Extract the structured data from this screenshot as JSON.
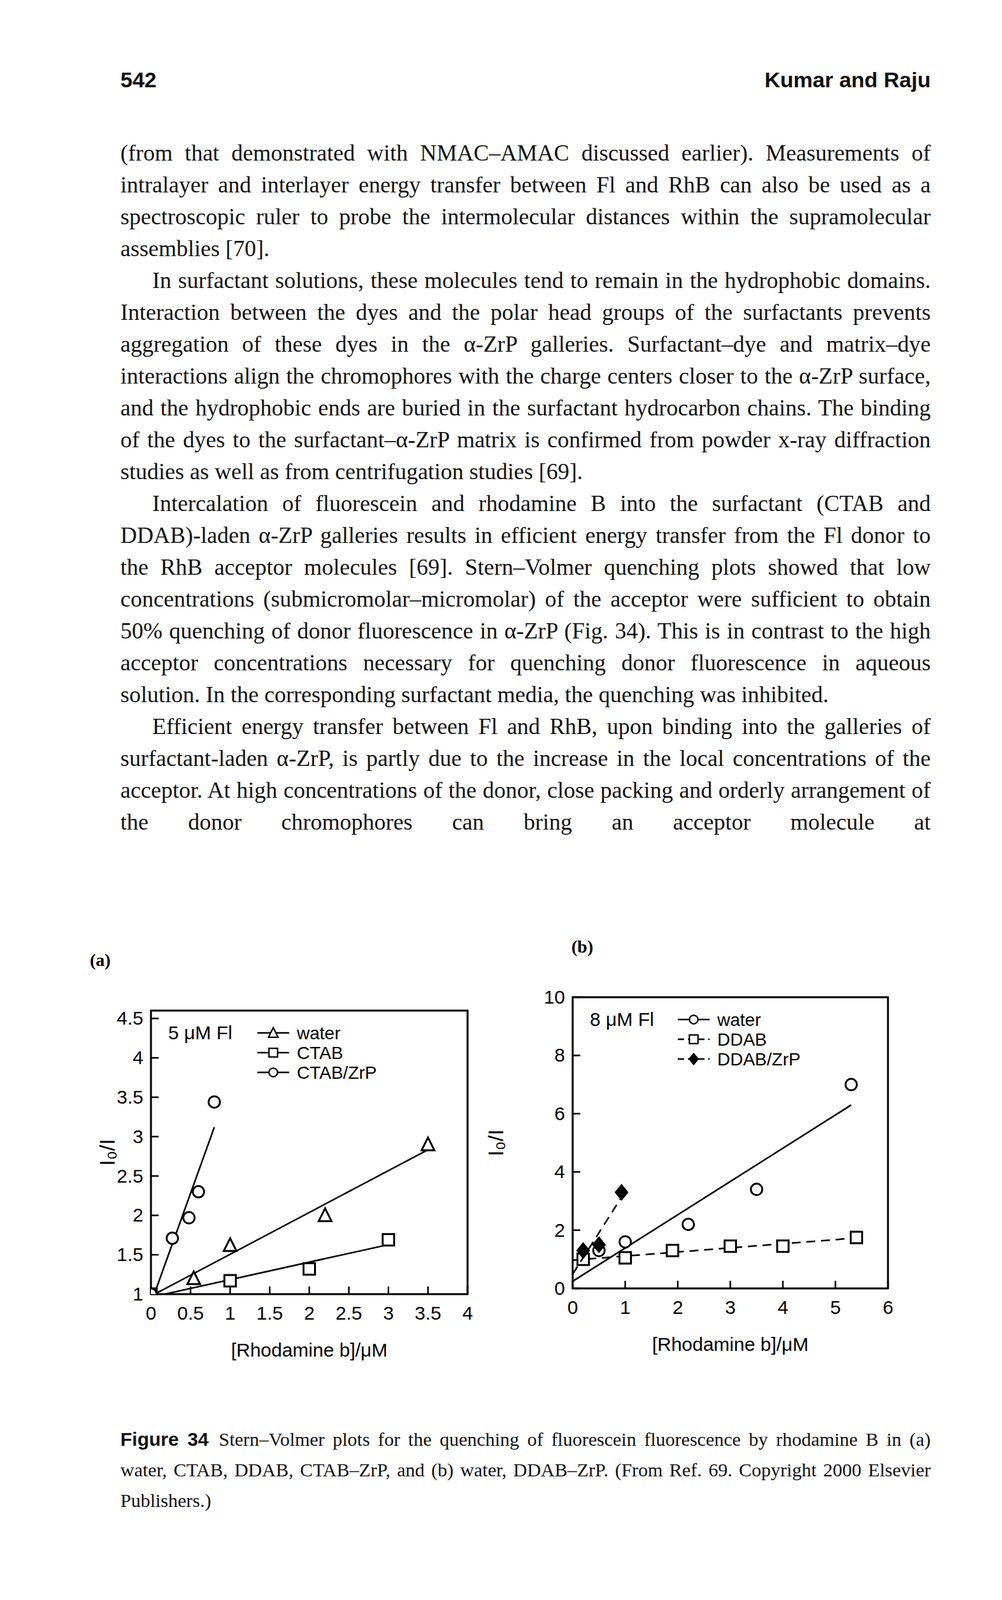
{
  "page": {
    "page_number": "542",
    "running_head": "Kumar and Raju",
    "paragraphs": [
      "(from that demonstrated with NMAC–AMAC discussed earlier). Measurements of intralayer and interlayer energy transfer between Fl and RhB can also be used as a spectroscopic ruler to probe the intermolecular distances within the supramolecular assemblies [70].",
      "In surfactant solutions, these molecules tend to remain in the hydrophobic domains. Interaction between the dyes and the polar head groups of the surfactants prevents aggregation of these dyes in the α-ZrP galleries. Surfactant–dye and matrix–dye interactions align the chromophores with the charge centers closer to the α-ZrP surface, and the hydrophobic ends are buried in the surfactant hydrocarbon chains. The binding of the dyes to the surfactant–α-ZrP matrix is confirmed from powder x-ray diffraction studies as well as from centrifugation studies [69].",
      "Intercalation of fluorescein and rhodamine B into the surfactant (CTAB and DDAB)-laden α-ZrP galleries results in efficient energy transfer from the Fl donor to the RhB acceptor molecules [69]. Stern–Volmer quenching plots showed that low concentrations (submicromolar–micromolar) of the acceptor were sufficient to obtain 50% quenching of donor fluorescence in α-ZrP (Fig. 34). This is in contrast to the high acceptor concentrations necessary for quenching donor fluorescence in aqueous solution. In the corresponding surfactant media, the quenching was inhibited.",
      "Efficient energy transfer between Fl and RhB, upon binding into the galleries of surfactant-laden α-ZrP, is partly due to the increase in the local concentrations of the acceptor. At high concentrations of the donor, close packing and orderly arrangement of the donor chromophores can bring an acceptor molecule at"
    ],
    "caption_label": "Figure 34",
    "caption": "Stern–Volmer plots for the quenching of fluorescein fluorescence by rhodamine B in (a) water, CTAB, DDAB, CTAB–ZrP, and (b) water, DDAB–ZrP. (From Ref. 69. Copyright 2000 Elsevier Publishers.)"
  },
  "chart_data": [
    {
      "type": "scatter",
      "panel_label": "(a)",
      "annotation": "5 μM Fl",
      "x_label": "[Rhodamine b]/μM",
      "y_label": "I₀/I",
      "xlim": [
        0,
        4
      ],
      "ylim": [
        1,
        4.6
      ],
      "xticks": [
        0,
        0.5,
        1,
        1.5,
        2,
        2.5,
        3,
        3.5,
        4
      ],
      "yticks": [
        1,
        1.5,
        2,
        2.5,
        3,
        3.5,
        4,
        4.5
      ],
      "legend": "upper right",
      "series": [
        {
          "name": "water",
          "color": "#000000",
          "marker": "triangle",
          "line_style": "solid",
          "x": [
            0,
            0.54,
            1.0,
            2.2,
            3.5
          ],
          "values": [
            1,
            1.2,
            1.62,
            2.0,
            2.9
          ]
        },
        {
          "name": "CTAB",
          "color": "#000000",
          "marker": "square",
          "line_style": "solid",
          "x": [
            0,
            1.0,
            2.0,
            3.0
          ],
          "values": [
            1,
            1.17,
            1.32,
            1.69
          ]
        },
        {
          "name": "CTAB/ZrP",
          "color": "#000000",
          "marker": "circle",
          "line_style": "solid",
          "x": [
            0,
            0.27,
            0.48,
            0.6,
            0.8
          ],
          "values": [
            1,
            1.71,
            1.97,
            2.3,
            3.44
          ]
        }
      ]
    },
    {
      "type": "scatter",
      "panel_label": "(b)",
      "annotation": "8 μM Fl",
      "x_label": "[Rhodamine b]/μM",
      "y_label": "I₀/I",
      "xlim": [
        0,
        6
      ],
      "ylim": [
        0,
        10
      ],
      "xticks": [
        0,
        1,
        2,
        3,
        4,
        5,
        6
      ],
      "yticks": [
        0,
        2,
        4,
        6,
        8,
        10
      ],
      "legend": "upper right",
      "series": [
        {
          "name": "water",
          "color": "#000000",
          "marker": "circle",
          "line_style": "solid",
          "x": [
            0.5,
            1.0,
            2.2,
            3.5,
            5.3
          ],
          "values": [
            1.3,
            1.6,
            2.2,
            3.4,
            7.0
          ]
        },
        {
          "name": "DDAB",
          "color": "#000000",
          "marker": "square",
          "line_style": "dashed",
          "x": [
            0.2,
            1.0,
            1.9,
            3.0,
            4.0,
            5.4
          ],
          "values": [
            1.0,
            1.05,
            1.3,
            1.45,
            1.45,
            1.75
          ]
        },
        {
          "name": "DDAB/ZrP",
          "color": "#000000",
          "marker": "diamond",
          "line_style": "dashed",
          "x": [
            0.2,
            0.5,
            0.93
          ],
          "values": [
            1.3,
            1.5,
            3.3
          ]
        }
      ]
    }
  ]
}
